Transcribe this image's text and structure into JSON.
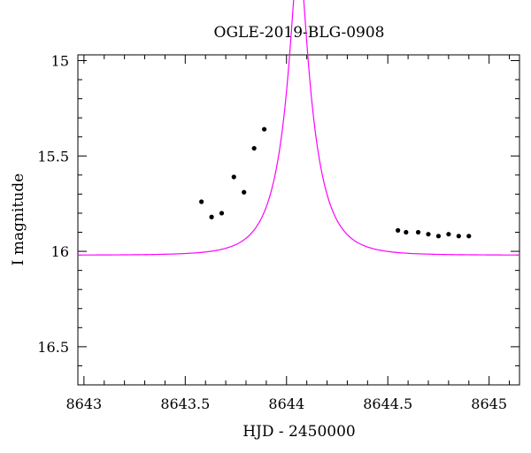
{
  "chart_data": {
    "type": "scatter",
    "title": "OGLE-2019-BLG-0908",
    "xlabel": "HJD - 2450000",
    "ylabel": "I magnitude",
    "xlim": [
      8642.97,
      8645.15
    ],
    "ylim": [
      16.7,
      14.97
    ],
    "y_inverted": true,
    "x_ticks": [
      "8643",
      "8643.5",
      "8644",
      "8644.5",
      "8645"
    ],
    "y_ticks": [
      "15",
      "15.5",
      "16",
      "16.5"
    ],
    "grid": false,
    "colors": {
      "model": "#ff00ff",
      "points": "#000000"
    },
    "model": {
      "description": "point-lens microlensing fit",
      "t0": 8644.06,
      "tE": 0.16,
      "u0": 0.2,
      "baseline_mag": 16.02,
      "fs": 0.8
    },
    "series": [
      {
        "type": "scatter",
        "x": [
          8643.58,
          8643.63,
          8643.68,
          8643.74,
          8643.79,
          8643.84,
          8643.89,
          8644.55,
          8644.59,
          8644.65,
          8644.7,
          8644.75,
          8644.8,
          8644.85,
          8644.9
        ],
        "y": [
          15.74,
          15.82,
          15.8,
          15.61,
          15.69,
          15.46,
          15.36,
          15.89,
          15.9,
          15.9,
          15.91,
          15.92,
          15.91,
          15.92,
          15.92
        ]
      }
    ]
  }
}
